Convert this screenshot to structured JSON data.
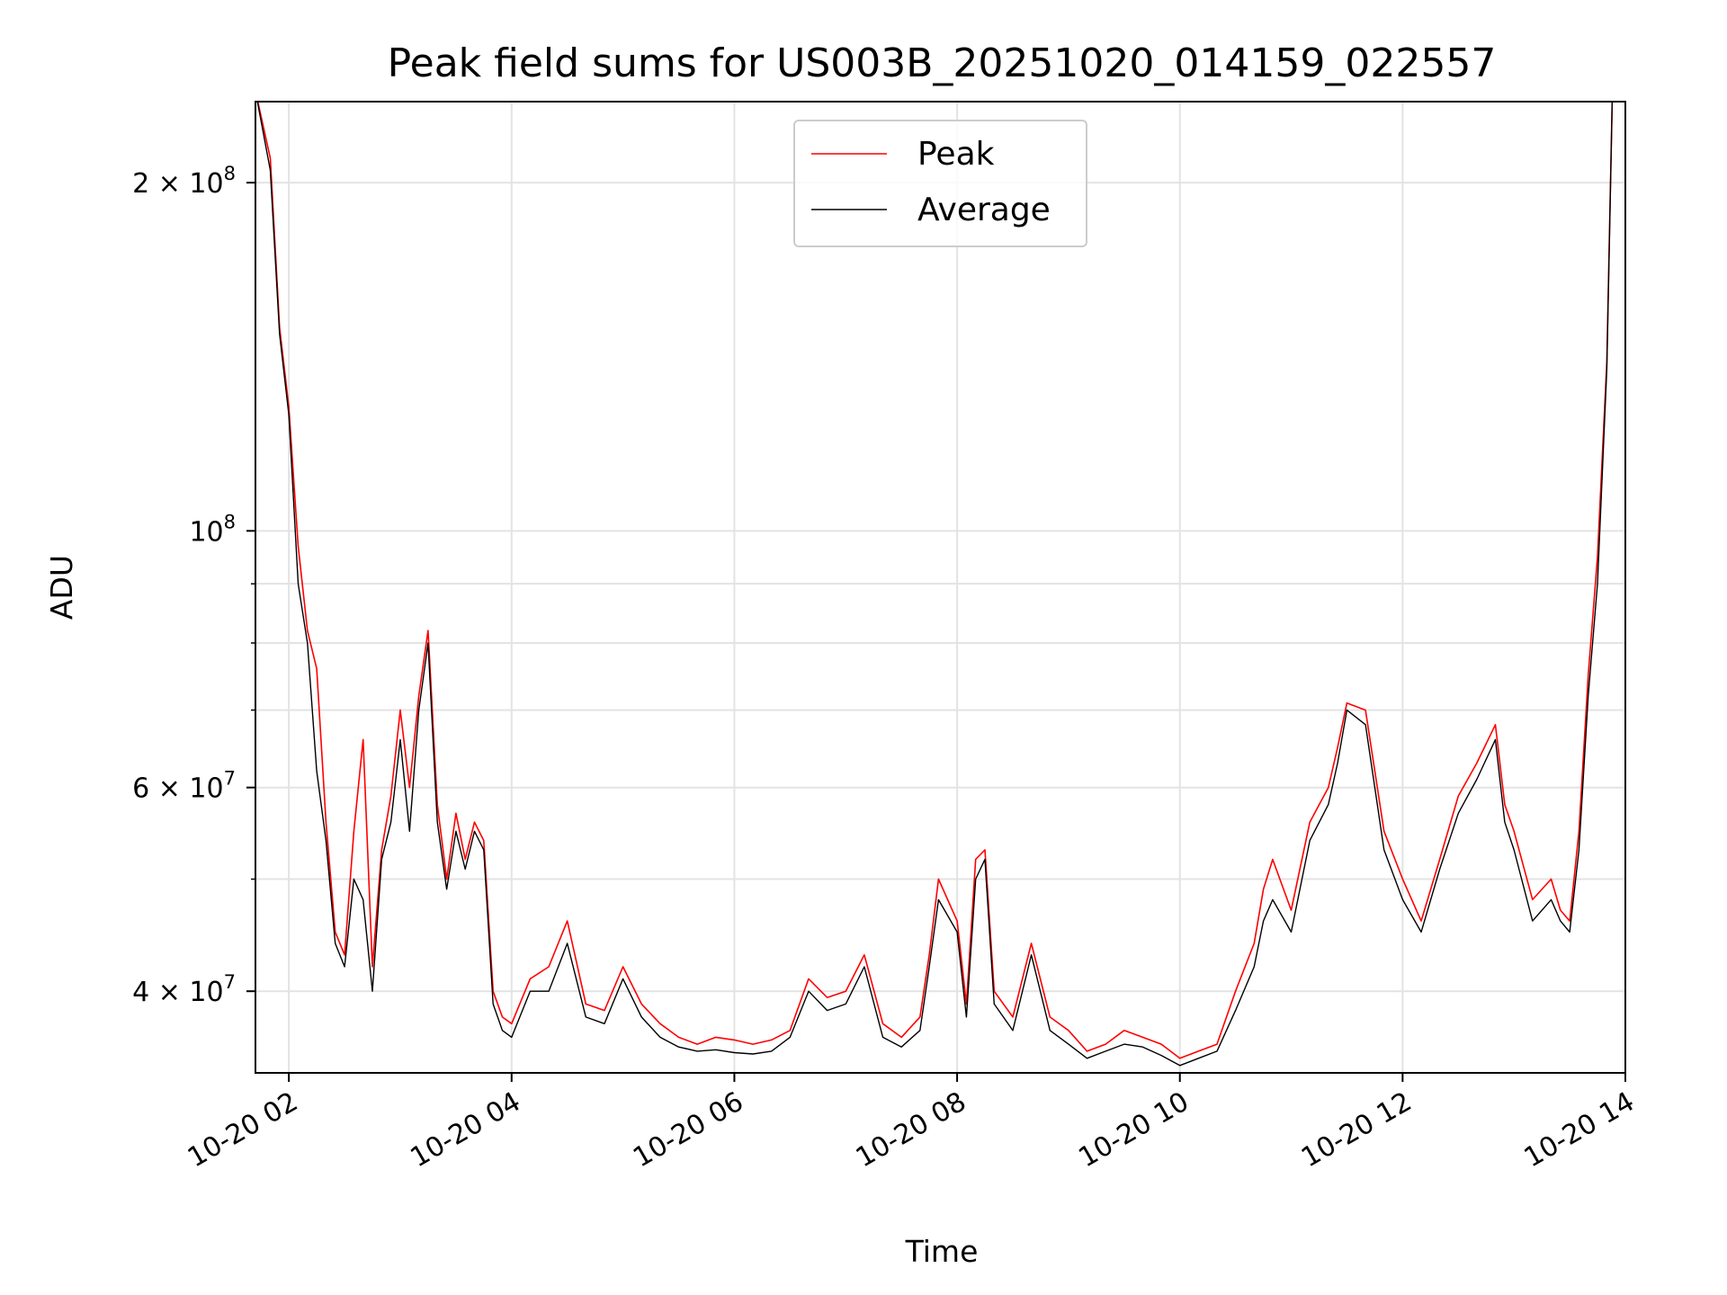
{
  "chart_data": {
    "type": "line",
    "title": "Peak field sums for US003B_20251020_014159_022557",
    "xlabel": "Time",
    "ylabel": "ADU",
    "yscale": "log",
    "xlim": [
      "2025-10-20T01:42",
      "2025-10-20T14:00"
    ],
    "ylim": [
      34000000,
      235000000
    ],
    "grid": true,
    "legend_position": "upper center",
    "x_ticks": [
      "10-20 02",
      "10-20 04",
      "10-20 06",
      "10-20 08",
      "10-20 10",
      "10-20 12",
      "10-20 14"
    ],
    "y_major_ticks": [
      {
        "value": 40000000,
        "mantissa": "4",
        "exponent": "7"
      },
      {
        "value": 60000000,
        "mantissa": "6",
        "exponent": "7"
      },
      {
        "value": 100000000,
        "mantissa": "",
        "exponent": "8"
      },
      {
        "value": 200000000,
        "mantissa": "2",
        "exponent": "8"
      }
    ],
    "y_minor_gridlines": [
      50000000,
      70000000,
      80000000,
      90000000
    ],
    "series": [
      {
        "name": "Peak",
        "color": "#ff0000",
        "x": [
          "2025-10-20T01:42",
          "2025-10-20T01:50",
          "2025-10-20T01:55",
          "2025-10-20T02:00",
          "2025-10-20T02:05",
          "2025-10-20T02:10",
          "2025-10-20T02:15",
          "2025-10-20T02:20",
          "2025-10-20T02:25",
          "2025-10-20T02:30",
          "2025-10-20T02:35",
          "2025-10-20T02:40",
          "2025-10-20T02:45",
          "2025-10-20T02:50",
          "2025-10-20T02:55",
          "2025-10-20T03:00",
          "2025-10-20T03:05",
          "2025-10-20T03:10",
          "2025-10-20T03:15",
          "2025-10-20T03:20",
          "2025-10-20T03:25",
          "2025-10-20T03:30",
          "2025-10-20T03:35",
          "2025-10-20T03:40",
          "2025-10-20T03:45",
          "2025-10-20T03:50",
          "2025-10-20T03:55",
          "2025-10-20T04:00",
          "2025-10-20T04:10",
          "2025-10-20T04:20",
          "2025-10-20T04:30",
          "2025-10-20T04:40",
          "2025-10-20T04:50",
          "2025-10-20T05:00",
          "2025-10-20T05:10",
          "2025-10-20T05:20",
          "2025-10-20T05:30",
          "2025-10-20T05:40",
          "2025-10-20T05:50",
          "2025-10-20T06:00",
          "2025-10-20T06:10",
          "2025-10-20T06:20",
          "2025-10-20T06:30",
          "2025-10-20T06:40",
          "2025-10-20T06:50",
          "2025-10-20T07:00",
          "2025-10-20T07:10",
          "2025-10-20T07:20",
          "2025-10-20T07:30",
          "2025-10-20T07:40",
          "2025-10-20T07:45",
          "2025-10-20T07:50",
          "2025-10-20T08:00",
          "2025-10-20T08:05",
          "2025-10-20T08:10",
          "2025-10-20T08:15",
          "2025-10-20T08:20",
          "2025-10-20T08:30",
          "2025-10-20T08:40",
          "2025-10-20T08:50",
          "2025-10-20T09:00",
          "2025-10-20T09:10",
          "2025-10-20T09:20",
          "2025-10-20T09:30",
          "2025-10-20T09:40",
          "2025-10-20T09:50",
          "2025-10-20T10:00",
          "2025-10-20T10:10",
          "2025-10-20T10:20",
          "2025-10-20T10:30",
          "2025-10-20T10:40",
          "2025-10-20T10:45",
          "2025-10-20T10:50",
          "2025-10-20T11:00",
          "2025-10-20T11:10",
          "2025-10-20T11:20",
          "2025-10-20T11:25",
          "2025-10-20T11:30",
          "2025-10-20T11:40",
          "2025-10-20T11:50",
          "2025-10-20T12:00",
          "2025-10-20T12:10",
          "2025-10-20T12:20",
          "2025-10-20T12:30",
          "2025-10-20T12:40",
          "2025-10-20T12:50",
          "2025-10-20T12:55",
          "2025-10-20T13:00",
          "2025-10-20T13:10",
          "2025-10-20T13:20",
          "2025-10-20T13:25",
          "2025-10-20T13:30",
          "2025-10-20T13:35",
          "2025-10-20T13:40",
          "2025-10-20T13:45",
          "2025-10-20T13:50",
          "2025-10-20T13:53"
        ],
        "y": [
          240000000,
          210000000,
          150000000,
          128000000,
          97000000,
          82000000,
          76000000,
          56000000,
          45000000,
          43000000,
          55000000,
          66000000,
          42000000,
          53000000,
          59000000,
          70000000,
          60000000,
          72000000,
          82000000,
          58000000,
          50000000,
          57000000,
          52000000,
          56000000,
          54000000,
          40000000,
          38000000,
          37500000,
          41000000,
          42000000,
          46000000,
          39000000,
          38500000,
          42000000,
          39000000,
          37500000,
          36500000,
          36000000,
          36500000,
          36300000,
          36000000,
          36300000,
          37000000,
          41000000,
          39500000,
          40000000,
          43000000,
          37500000,
          36500000,
          38000000,
          43000000,
          50000000,
          46000000,
          39000000,
          52000000,
          53000000,
          40000000,
          38000000,
          44000000,
          38000000,
          37000000,
          35500000,
          36000000,
          37000000,
          36500000,
          36000000,
          35000000,
          35500000,
          36000000,
          40000000,
          44000000,
          49000000,
          52000000,
          47000000,
          56000000,
          60000000,
          65000000,
          71000000,
          70000000,
          55000000,
          50000000,
          46000000,
          52000000,
          59000000,
          63000000,
          68000000,
          58000000,
          55000000,
          48000000,
          50000000,
          47000000,
          46000000,
          55000000,
          75000000,
          95000000,
          140000000,
          240000000
        ]
      },
      {
        "name": "Average",
        "color": "#000000",
        "x": [
          "2025-10-20T01:42",
          "2025-10-20T01:50",
          "2025-10-20T01:55",
          "2025-10-20T02:00",
          "2025-10-20T02:05",
          "2025-10-20T02:10",
          "2025-10-20T02:15",
          "2025-10-20T02:20",
          "2025-10-20T02:25",
          "2025-10-20T02:30",
          "2025-10-20T02:35",
          "2025-10-20T02:40",
          "2025-10-20T02:45",
          "2025-10-20T02:50",
          "2025-10-20T02:55",
          "2025-10-20T03:00",
          "2025-10-20T03:05",
          "2025-10-20T03:10",
          "2025-10-20T03:15",
          "2025-10-20T03:20",
          "2025-10-20T03:25",
          "2025-10-20T03:30",
          "2025-10-20T03:35",
          "2025-10-20T03:40",
          "2025-10-20T03:45",
          "2025-10-20T03:50",
          "2025-10-20T03:55",
          "2025-10-20T04:00",
          "2025-10-20T04:10",
          "2025-10-20T04:20",
          "2025-10-20T04:30",
          "2025-10-20T04:40",
          "2025-10-20T04:50",
          "2025-10-20T05:00",
          "2025-10-20T05:10",
          "2025-10-20T05:20",
          "2025-10-20T05:30",
          "2025-10-20T05:40",
          "2025-10-20T05:50",
          "2025-10-20T06:00",
          "2025-10-20T06:10",
          "2025-10-20T06:20",
          "2025-10-20T06:30",
          "2025-10-20T06:40",
          "2025-10-20T06:50",
          "2025-10-20T07:00",
          "2025-10-20T07:10",
          "2025-10-20T07:20",
          "2025-10-20T07:30",
          "2025-10-20T07:40",
          "2025-10-20T07:45",
          "2025-10-20T07:50",
          "2025-10-20T08:00",
          "2025-10-20T08:05",
          "2025-10-20T08:10",
          "2025-10-20T08:15",
          "2025-10-20T08:20",
          "2025-10-20T08:30",
          "2025-10-20T08:40",
          "2025-10-20T08:50",
          "2025-10-20T09:00",
          "2025-10-20T09:10",
          "2025-10-20T09:20",
          "2025-10-20T09:30",
          "2025-10-20T09:40",
          "2025-10-20T09:50",
          "2025-10-20T10:00",
          "2025-10-20T10:10",
          "2025-10-20T10:20",
          "2025-10-20T10:30",
          "2025-10-20T10:40",
          "2025-10-20T10:45",
          "2025-10-20T10:50",
          "2025-10-20T11:00",
          "2025-10-20T11:10",
          "2025-10-20T11:20",
          "2025-10-20T11:25",
          "2025-10-20T11:30",
          "2025-10-20T11:40",
          "2025-10-20T11:50",
          "2025-10-20T12:00",
          "2025-10-20T12:10",
          "2025-10-20T12:20",
          "2025-10-20T12:30",
          "2025-10-20T12:40",
          "2025-10-20T12:50",
          "2025-10-20T12:55",
          "2025-10-20T13:00",
          "2025-10-20T13:10",
          "2025-10-20T13:20",
          "2025-10-20T13:25",
          "2025-10-20T13:30",
          "2025-10-20T13:35",
          "2025-10-20T13:40",
          "2025-10-20T13:45",
          "2025-10-20T13:50",
          "2025-10-20T13:53"
        ],
        "y": [
          240000000,
          205000000,
          148000000,
          126000000,
          90000000,
          80000000,
          62000000,
          54000000,
          44000000,
          42000000,
          50000000,
          48000000,
          40000000,
          52000000,
          56000000,
          66000000,
          55000000,
          70000000,
          80000000,
          56000000,
          49000000,
          55000000,
          51000000,
          55000000,
          53000000,
          39000000,
          37000000,
          36500000,
          40000000,
          40000000,
          44000000,
          38000000,
          37500000,
          41000000,
          38000000,
          36500000,
          35800000,
          35500000,
          35600000,
          35400000,
          35300000,
          35500000,
          36500000,
          40000000,
          38500000,
          39000000,
          42000000,
          36500000,
          35800000,
          37000000,
          42000000,
          48000000,
          45000000,
          38000000,
          50000000,
          52000000,
          39000000,
          37000000,
          43000000,
          37000000,
          36000000,
          35000000,
          35500000,
          36000000,
          35800000,
          35200000,
          34500000,
          35000000,
          35500000,
          38500000,
          42000000,
          46000000,
          48000000,
          45000000,
          54000000,
          58000000,
          63000000,
          70000000,
          68000000,
          53000000,
          48000000,
          45000000,
          51000000,
          57000000,
          61000000,
          66000000,
          56000000,
          53000000,
          46000000,
          48000000,
          46000000,
          45000000,
          53000000,
          72000000,
          90000000,
          138000000,
          240000000
        ]
      }
    ]
  }
}
